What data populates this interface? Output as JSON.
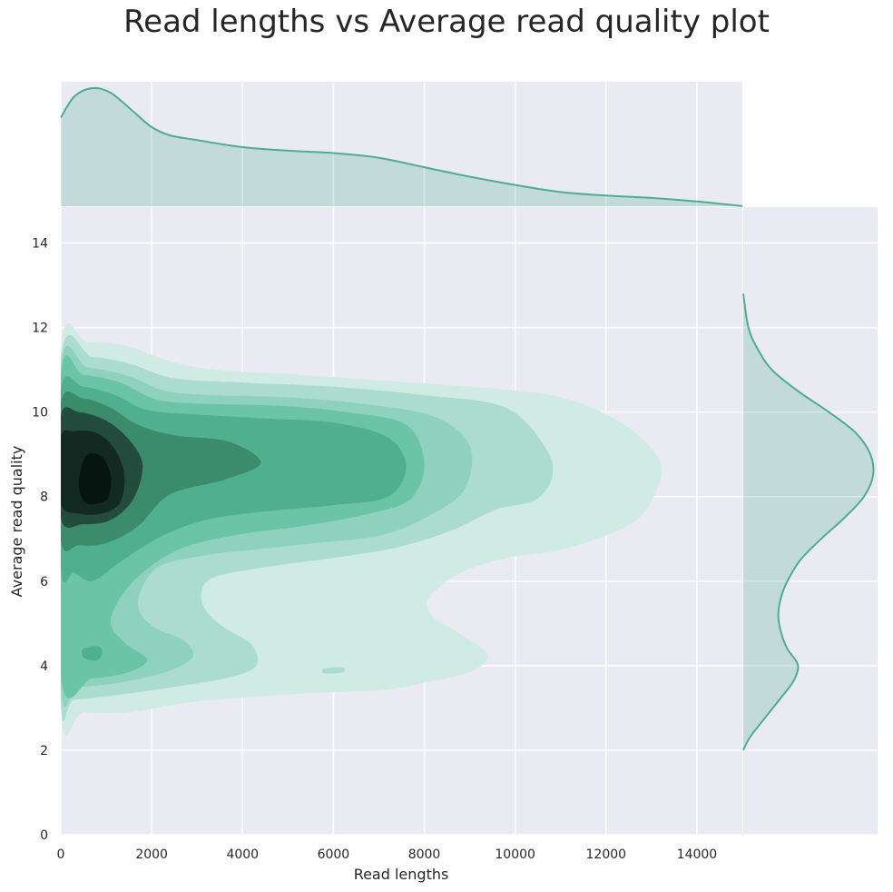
{
  "chart_data": {
    "type": "kde-joint",
    "title": "Read lengths vs Average read quality plot",
    "xlabel": "Read lengths",
    "ylabel": "Average read quality",
    "xlim": [
      0,
      15000
    ],
    "ylim": [
      0,
      14.85
    ],
    "xticks": [
      "0",
      "2000",
      "4000",
      "6000",
      "8000",
      "10000",
      "12000",
      "14000"
    ],
    "yticks": [
      "0",
      "2",
      "4",
      "6",
      "8",
      "10",
      "12",
      "14"
    ],
    "grid": true,
    "color": "#4cae8f",
    "background": "#eaeaf2",
    "contour_levels": [
      {
        "level": 1,
        "fill": "#d0ebe3",
        "ring": [
          [
            0,
            11.4
          ],
          [
            600,
            11.65
          ],
          [
            1500,
            11.55
          ],
          [
            2400,
            11.2
          ],
          [
            3400,
            11.0
          ],
          [
            5000,
            10.9
          ],
          [
            7000,
            10.75
          ],
          [
            9000,
            10.6
          ],
          [
            11000,
            10.35
          ],
          [
            12400,
            9.7
          ],
          [
            13200,
            8.8
          ],
          [
            13000,
            7.9
          ],
          [
            12600,
            7.4
          ],
          [
            11800,
            7.0
          ],
          [
            10800,
            6.7
          ],
          [
            9800,
            6.55
          ],
          [
            8800,
            6.2
          ],
          [
            8100,
            5.6
          ],
          [
            8200,
            5.15
          ],
          [
            8800,
            4.75
          ],
          [
            9400,
            4.25
          ],
          [
            9000,
            3.85
          ],
          [
            8000,
            3.6
          ],
          [
            7000,
            3.42
          ],
          [
            5000,
            3.32
          ],
          [
            3000,
            3.15
          ],
          [
            1500,
            2.9
          ],
          [
            500,
            2.9
          ],
          [
            0,
            3.0
          ]
        ]
      },
      {
        "level": 2,
        "fill": "#acdcce",
        "ring": [
          [
            0,
            11.2
          ],
          [
            700,
            11.3
          ],
          [
            1500,
            11.15
          ],
          [
            2500,
            10.8
          ],
          [
            4000,
            10.7
          ],
          [
            6000,
            10.6
          ],
          [
            8000,
            10.4
          ],
          [
            9800,
            10.1
          ],
          [
            10700,
            9.1
          ],
          [
            10800,
            8.4
          ],
          [
            10400,
            7.9
          ],
          [
            9600,
            7.7
          ],
          [
            8600,
            7.2
          ],
          [
            7400,
            6.8
          ],
          [
            6000,
            6.55
          ],
          [
            4600,
            6.35
          ],
          [
            3400,
            6.1
          ],
          [
            3100,
            5.75
          ],
          [
            3200,
            5.3
          ],
          [
            3600,
            4.9
          ],
          [
            4200,
            4.5
          ],
          [
            4300,
            4.0
          ],
          [
            3700,
            3.72
          ],
          [
            2500,
            3.5
          ],
          [
            1200,
            3.3
          ],
          [
            300,
            3.2
          ],
          [
            0,
            3.3
          ]
        ]
      },
      {
        "level": 3,
        "fill": "#8ed2bd",
        "ring": [
          [
            0,
            11.0
          ],
          [
            600,
            11.05
          ],
          [
            1500,
            10.85
          ],
          [
            2300,
            10.5
          ],
          [
            3400,
            10.4
          ],
          [
            5000,
            10.35
          ],
          [
            6600,
            10.2
          ],
          [
            8200,
            9.9
          ],
          [
            9000,
            9.2
          ],
          [
            8900,
            8.2
          ],
          [
            8200,
            7.6
          ],
          [
            7100,
            7.1
          ],
          [
            5600,
            6.9
          ],
          [
            4300,
            6.75
          ],
          [
            3100,
            6.6
          ],
          [
            2100,
            6.3
          ],
          [
            1700,
            5.5
          ],
          [
            2000,
            4.95
          ],
          [
            2700,
            4.6
          ],
          [
            2900,
            4.2
          ],
          [
            2300,
            3.85
          ],
          [
            1300,
            3.6
          ],
          [
            400,
            3.5
          ],
          [
            0,
            3.6
          ]
        ]
      },
      {
        "level": 4,
        "fill": "#6cc4a7",
        "ring": [
          [
            0,
            10.8
          ],
          [
            500,
            10.88
          ],
          [
            1300,
            10.7
          ],
          [
            2100,
            10.3
          ],
          [
            3100,
            10.2
          ],
          [
            4800,
            10.15
          ],
          [
            6300,
            10.0
          ],
          [
            7600,
            9.7
          ],
          [
            8000,
            8.8
          ],
          [
            7700,
            7.95
          ],
          [
            6800,
            7.6
          ],
          [
            5300,
            7.3
          ],
          [
            3900,
            7.1
          ],
          [
            2600,
            6.75
          ],
          [
            1600,
            6.0
          ],
          [
            1100,
            5.1
          ],
          [
            1400,
            4.55
          ],
          [
            1900,
            4.15
          ],
          [
            1500,
            3.85
          ],
          [
            700,
            3.7
          ],
          [
            0,
            3.78
          ]
        ]
      },
      {
        "level": 5,
        "fill": "#50af8e",
        "ring": [
          [
            0,
            10.5
          ],
          [
            500,
            10.6
          ],
          [
            1200,
            10.4
          ],
          [
            1900,
            10.05
          ],
          [
            2900,
            9.95
          ],
          [
            4500,
            9.85
          ],
          [
            6000,
            9.75
          ],
          [
            7200,
            9.4
          ],
          [
            7600,
            8.7
          ],
          [
            7200,
            8.0
          ],
          [
            6000,
            7.8
          ],
          [
            4500,
            7.65
          ],
          [
            3200,
            7.45
          ],
          [
            2200,
            7.05
          ],
          [
            1300,
            6.45
          ],
          [
            700,
            6.0
          ],
          [
            300,
            6.2
          ],
          [
            0,
            6.3
          ]
        ]
      },
      {
        "level": 6,
        "fill": "#3a8c6d",
        "ring": [
          [
            0,
            10.2
          ],
          [
            500,
            10.32
          ],
          [
            1100,
            10.1
          ],
          [
            1700,
            9.7
          ],
          [
            2500,
            9.45
          ],
          [
            3700,
            9.3
          ],
          [
            4400,
            8.8
          ],
          [
            3600,
            8.4
          ],
          [
            2400,
            8.05
          ],
          [
            1700,
            7.3
          ],
          [
            1000,
            6.9
          ],
          [
            400,
            6.85
          ],
          [
            0,
            7.0
          ]
        ]
      },
      {
        "level": 7,
        "fill": "#234c3e",
        "ring": [
          [
            0,
            9.9
          ],
          [
            400,
            10.0
          ],
          [
            1000,
            9.8
          ],
          [
            1500,
            9.35
          ],
          [
            1800,
            8.75
          ],
          [
            1600,
            7.95
          ],
          [
            1100,
            7.45
          ],
          [
            500,
            7.35
          ],
          [
            0,
            7.5
          ]
        ]
      },
      {
        "level": 8,
        "fill": "#132a22",
        "ring": [
          [
            0,
            9.4
          ],
          [
            300,
            9.55
          ],
          [
            800,
            9.5
          ],
          [
            1200,
            9.1
          ],
          [
            1400,
            8.5
          ],
          [
            1300,
            7.85
          ],
          [
            900,
            7.6
          ],
          [
            400,
            7.6
          ],
          [
            0,
            7.85
          ]
        ]
      },
      {
        "level": 9,
        "fill": "#071510",
        "ring": [
          [
            600,
            9.0
          ],
          [
            900,
            8.95
          ],
          [
            1100,
            8.5
          ],
          [
            1050,
            8.0
          ],
          [
            850,
            7.85
          ],
          [
            550,
            7.85
          ],
          [
            400,
            8.2
          ],
          [
            450,
            8.7
          ]
        ]
      }
    ],
    "minor_blobs": [
      {
        "fill": "#50af8e",
        "ring": [
          [
            500,
            4.4
          ],
          [
            850,
            4.45
          ],
          [
            900,
            4.25
          ],
          [
            750,
            4.12
          ],
          [
            500,
            4.2
          ]
        ]
      },
      {
        "fill": "#acdcce",
        "ring": [
          [
            5800,
            3.93
          ],
          [
            6200,
            3.96
          ],
          [
            6200,
            3.84
          ],
          [
            5800,
            3.82
          ]
        ]
      }
    ],
    "marginal_x": {
      "x": [
        0,
        300,
        700,
        1100,
        1600,
        2000,
        2400,
        3000,
        4000,
        5000,
        6000,
        7000,
        8000,
        9000,
        10000,
        11000,
        12000,
        13000,
        14000,
        15000
      ],
      "density": [
        0.75,
        0.93,
        1.0,
        0.96,
        0.8,
        0.67,
        0.6,
        0.56,
        0.5,
        0.47,
        0.45,
        0.41,
        0.33,
        0.25,
        0.18,
        0.12,
        0.09,
        0.07,
        0.04,
        0.0
      ]
    },
    "marginal_y": {
      "y": [
        2.0,
        2.3,
        2.7,
        3.2,
        3.6,
        3.9,
        4.1,
        4.4,
        4.8,
        5.2,
        5.6,
        6.0,
        6.5,
        7.0,
        7.5,
        8.0,
        8.5,
        9.0,
        9.5,
        10.0,
        10.5,
        11.0,
        11.5,
        12.0,
        12.8
      ],
      "density": [
        0.0,
        0.05,
        0.15,
        0.28,
        0.38,
        0.42,
        0.41,
        0.34,
        0.29,
        0.27,
        0.29,
        0.34,
        0.44,
        0.6,
        0.78,
        0.93,
        1.0,
        0.98,
        0.87,
        0.66,
        0.42,
        0.22,
        0.11,
        0.04,
        0.0
      ]
    }
  }
}
